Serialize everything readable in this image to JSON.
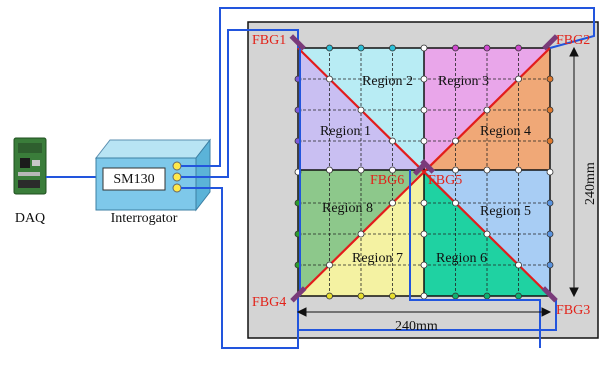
{
  "daq": {
    "label": "DAQ"
  },
  "interrogator": {
    "device_label": "SM130",
    "label": "Interrogator"
  },
  "regions": [
    {
      "label": "Region 1",
      "color": "#c9bff2"
    },
    {
      "label": "Region 2",
      "color": "#b8ecf4"
    },
    {
      "label": "Region 3",
      "color": "#e9a6ea"
    },
    {
      "label": "Region 4",
      "color": "#f0a877"
    },
    {
      "label": "Region 5",
      "color": "#a8cdf4"
    },
    {
      "label": "Region 6",
      "color": "#1fd2a2"
    },
    {
      "label": "Region 7",
      "color": "#f4f2a2"
    },
    {
      "label": "Region 8",
      "color": "#8dc88b"
    }
  ],
  "sensors": {
    "fbg1": "FBG1",
    "fbg2": "FBG2",
    "fbg3": "FBG3",
    "fbg4": "FBG4",
    "fbg5": "FBG5",
    "fbg6": "FBG6"
  },
  "dimensions": {
    "width": "240mm",
    "height": "240mm"
  },
  "colors": {
    "fiber": "#2255dd",
    "diagonal": "#e21c1c",
    "plate_bg": "#d4d4d4",
    "border": "#111111"
  }
}
